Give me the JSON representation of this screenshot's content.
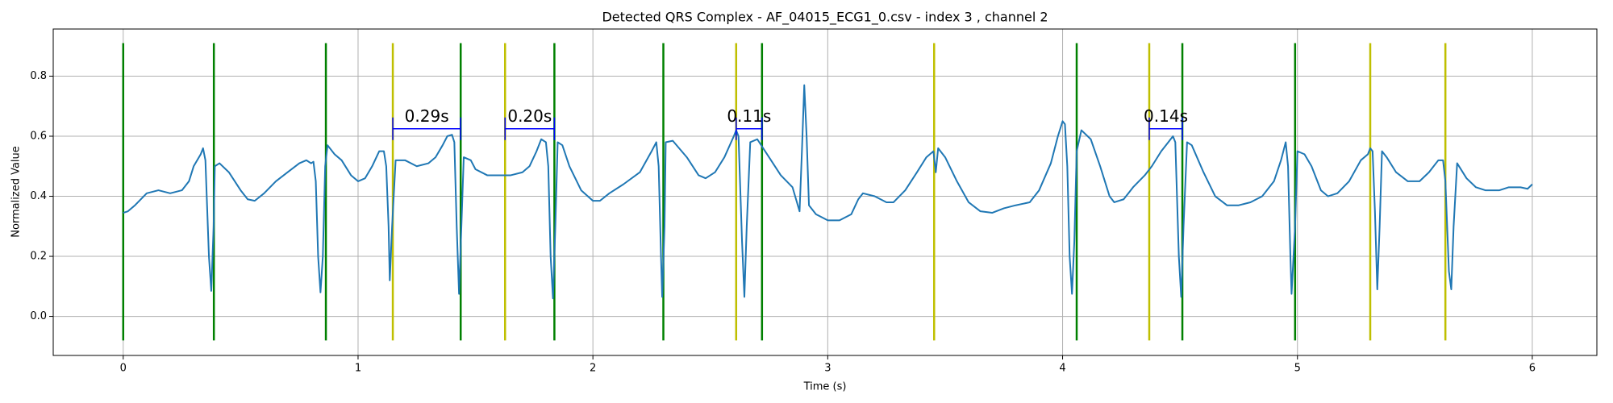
{
  "chart_data": {
    "type": "line",
    "title": "Detected QRS Complex - AF_04015_ECG1_0.csv - index 3 , channel 2",
    "xlabel": "Time (s)",
    "ylabel": "Normalized Value",
    "xlim": [
      -0.298,
      6.275
    ],
    "ylim": [
      -0.13,
      0.957
    ],
    "xticks": [
      0,
      1,
      2,
      3,
      4,
      5,
      6
    ],
    "yticks": [
      {
        "value": 0,
        "label": "0.0"
      },
      0.2,
      0.4,
      0.6,
      0.8
    ],
    "grid": true,
    "x": [
      0,
      0.02,
      0.05,
      0.1,
      0.15,
      0.2,
      0.25,
      0.28,
      0.3,
      0.33,
      0.34,
      0.35,
      0.365,
      0.375,
      0.385,
      0.39,
      0.41,
      0.45,
      0.5,
      0.53,
      0.56,
      0.6,
      0.65,
      0.7,
      0.75,
      0.78,
      0.8,
      0.81,
      0.82,
      0.83,
      0.84,
      0.85,
      0.86,
      0.87,
      0.9,
      0.93,
      0.97,
      1.0,
      1.03,
      1.06,
      1.09,
      1.11,
      1.12,
      1.13,
      1.135,
      1.145,
      1.16,
      1.2,
      1.25,
      1.3,
      1.33,
      1.36,
      1.38,
      1.4,
      1.41,
      1.42,
      1.43,
      1.44,
      1.45,
      1.48,
      1.5,
      1.55,
      1.6,
      1.65,
      1.7,
      1.73,
      1.76,
      1.78,
      1.8,
      1.81,
      1.82,
      1.83,
      1.84,
      1.85,
      1.87,
      1.9,
      1.95,
      2.0,
      2.03,
      2.07,
      2.13,
      2.2,
      2.25,
      2.27,
      2.28,
      2.29,
      2.295,
      2.305,
      2.31,
      2.34,
      2.4,
      2.45,
      2.48,
      2.52,
      2.56,
      2.6,
      2.61,
      2.62,
      2.635,
      2.645,
      2.655,
      2.67,
      2.7,
      2.75,
      2.8,
      2.85,
      2.88,
      2.89,
      2.9,
      2.91,
      2.92,
      2.95,
      3.0,
      3.05,
      3.1,
      3.13,
      3.15,
      3.2,
      3.25,
      3.28,
      3.33,
      3.38,
      3.42,
      3.45,
      3.46,
      3.47,
      3.5,
      3.55,
      3.6,
      3.65,
      3.7,
      3.75,
      3.8,
      3.86,
      3.9,
      3.95,
      3.98,
      4.0,
      4.01,
      4.02,
      4.03,
      4.04,
      4.05,
      4.06,
      4.08,
      4.12,
      4.16,
      4.2,
      4.22,
      4.26,
      4.3,
      4.35,
      4.38,
      4.42,
      4.45,
      4.47,
      4.48,
      4.495,
      4.505,
      4.515,
      4.53,
      4.55,
      4.6,
      4.65,
      4.7,
      4.75,
      4.8,
      4.85,
      4.9,
      4.93,
      4.95,
      4.96,
      4.97,
      4.975,
      4.99,
      5.0,
      5.03,
      5.06,
      5.1,
      5.13,
      5.17,
      5.22,
      5.27,
      5.3,
      5.31,
      5.32,
      5.33,
      5.34,
      5.35,
      5.36,
      5.38,
      5.42,
      5.47,
      5.52,
      5.56,
      5.6,
      5.62,
      5.63,
      5.645,
      5.655,
      5.665,
      5.68,
      5.72,
      5.76,
      5.8,
      5.86,
      5.9,
      5.95,
      5.98,
      6.0
    ],
    "series": [
      {
        "color": "#1f77b4",
        "values": [
          0.345,
          0.35,
          0.37,
          0.41,
          0.42,
          0.41,
          0.42,
          0.45,
          0.5,
          0.54,
          0.56,
          0.52,
          0.2,
          0.085,
          0.3,
          0.5,
          0.51,
          0.48,
          0.42,
          0.39,
          0.385,
          0.41,
          0.45,
          0.48,
          0.51,
          0.52,
          0.51,
          0.515,
          0.45,
          0.2,
          0.08,
          0.2,
          0.5,
          0.57,
          0.54,
          0.52,
          0.47,
          0.45,
          0.46,
          0.5,
          0.55,
          0.55,
          0.5,
          0.3,
          0.12,
          0.3,
          0.52,
          0.52,
          0.5,
          0.51,
          0.53,
          0.57,
          0.6,
          0.605,
          0.58,
          0.3,
          0.075,
          0.3,
          0.53,
          0.52,
          0.49,
          0.47,
          0.47,
          0.47,
          0.48,
          0.5,
          0.55,
          0.59,
          0.58,
          0.5,
          0.2,
          0.06,
          0.3,
          0.58,
          0.57,
          0.5,
          0.42,
          0.385,
          0.385,
          0.41,
          0.44,
          0.48,
          0.55,
          0.58,
          0.5,
          0.2,
          0.065,
          0.3,
          0.58,
          0.585,
          0.53,
          0.47,
          0.46,
          0.48,
          0.53,
          0.6,
          0.62,
          0.6,
          0.25,
          0.065,
          0.3,
          0.58,
          0.59,
          0.53,
          0.47,
          0.43,
          0.35,
          0.55,
          0.77,
          0.6,
          0.37,
          0.34,
          0.32,
          0.32,
          0.34,
          0.39,
          0.41,
          0.4,
          0.38,
          0.38,
          0.42,
          0.48,
          0.53,
          0.55,
          0.48,
          0.56,
          0.53,
          0.45,
          0.38,
          0.35,
          0.345,
          0.36,
          0.37,
          0.38,
          0.42,
          0.51,
          0.6,
          0.65,
          0.64,
          0.5,
          0.2,
          0.075,
          0.25,
          0.55,
          0.62,
          0.59,
          0.5,
          0.4,
          0.38,
          0.39,
          0.43,
          0.47,
          0.5,
          0.55,
          0.58,
          0.6,
          0.58,
          0.2,
          0.065,
          0.3,
          0.58,
          0.57,
          0.48,
          0.4,
          0.37,
          0.37,
          0.38,
          0.4,
          0.45,
          0.52,
          0.58,
          0.5,
          0.2,
          0.075,
          0.3,
          0.55,
          0.54,
          0.5,
          0.42,
          0.4,
          0.41,
          0.45,
          0.52,
          0.54,
          0.56,
          0.55,
          0.35,
          0.09,
          0.3,
          0.55,
          0.53,
          0.48,
          0.45,
          0.45,
          0.48,
          0.52,
          0.52,
          0.45,
          0.15,
          0.09,
          0.3,
          0.51,
          0.46,
          0.43,
          0.42,
          0.42,
          0.43,
          0.43,
          0.425,
          0.44
        ]
      }
    ],
    "markers": [
      {
        "color": "#008000",
        "ylim": [
          -0.08,
          0.91
        ],
        "x": [
          0,
          0.386,
          0.863,
          1.437,
          1.836,
          2.3,
          2.72,
          4.06,
          4.51,
          4.99
        ]
      },
      {
        "color": "#bfbf00",
        "ylim": [
          -0.08,
          0.91
        ],
        "x": [
          1.148,
          1.626,
          2.61,
          3.453,
          4.369,
          5.31,
          5.63
        ]
      }
    ],
    "annotation_color": "#0000ff",
    "annotation_y": 0.625,
    "intervals": [
      {
        "start": 1.148,
        "end": 1.437,
        "label": "0.29s"
      },
      {
        "start": 1.626,
        "end": 1.836,
        "label": "0.20s"
      },
      {
        "start": 2.61,
        "end": 2.72,
        "label": "0.11s"
      },
      {
        "start": 4.369,
        "end": 4.51,
        "label": "0.14s"
      }
    ]
  }
}
